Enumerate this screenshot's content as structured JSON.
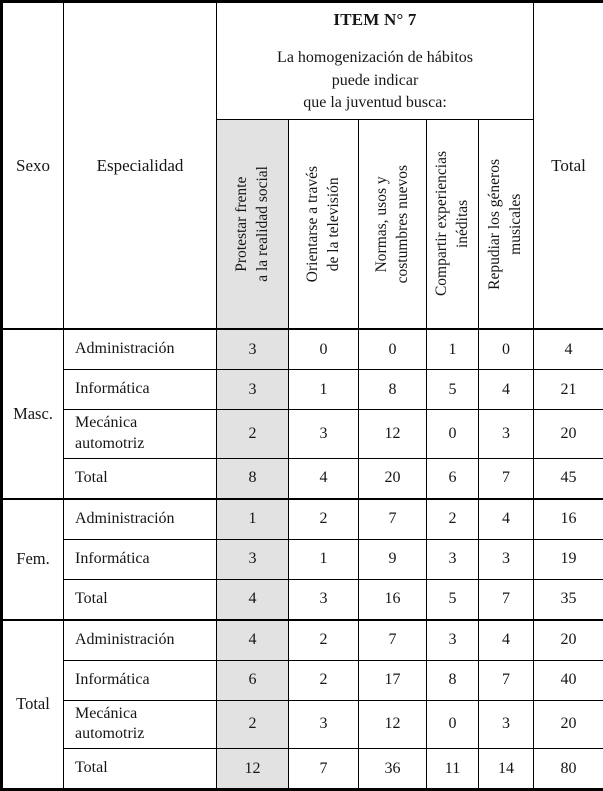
{
  "colors": {
    "highlight_column": "#e2e2e2",
    "border": "#000000",
    "text": "#161616"
  },
  "header": {
    "sexo": "Sexo",
    "especialidad": "Especialidad",
    "item_title": "ITEM N° 7",
    "item_subtitle": "La homogenización de hábitos\npuede indicar\nque la juventud busca:",
    "options": [
      "Protestar frente\na la realidad social",
      "Orientarse a través\nde la televisión",
      "Normas, usos y\ncostumbres nuevos",
      "Compartir experiencias\ninéditas",
      "Repudiar los géneros\nmusicales"
    ],
    "total": "Total"
  },
  "groups": [
    {
      "sexo": "Masc.",
      "rows": [
        {
          "especialidad": "Administración",
          "values": [
            3,
            0,
            0,
            1,
            0
          ],
          "total": 4
        },
        {
          "especialidad": "Informática",
          "values": [
            3,
            1,
            8,
            5,
            4
          ],
          "total": 21
        },
        {
          "especialidad": "Mecánica\nautomotriz",
          "values": [
            2,
            3,
            12,
            0,
            3
          ],
          "total": 20
        },
        {
          "especialidad": "Total",
          "values": [
            8,
            4,
            20,
            6,
            7
          ],
          "total": 45
        }
      ]
    },
    {
      "sexo": "Fem.",
      "rows": [
        {
          "especialidad": "Administración",
          "values": [
            1,
            2,
            7,
            2,
            4
          ],
          "total": 16
        },
        {
          "especialidad": "Informática",
          "values": [
            3,
            1,
            9,
            3,
            3
          ],
          "total": 19
        },
        {
          "especialidad": "Total",
          "values": [
            4,
            3,
            16,
            5,
            7
          ],
          "total": 35
        }
      ]
    },
    {
      "sexo": "Total",
      "rows": [
        {
          "especialidad": "Administración",
          "values": [
            4,
            2,
            7,
            3,
            4
          ],
          "total": 20
        },
        {
          "especialidad": "Informática",
          "values": [
            6,
            2,
            17,
            8,
            7
          ],
          "total": 40
        },
        {
          "especialidad": "Mecánica\nautomotriz",
          "values": [
            2,
            3,
            12,
            0,
            3
          ],
          "total": 20
        },
        {
          "especialidad": "Total",
          "values": [
            12,
            7,
            36,
            11,
            14
          ],
          "total": 80
        }
      ]
    }
  ],
  "chart_data": {
    "type": "table",
    "title": "ITEM N° 7 — La homogenización de hábitos puede indicar que la juventud busca:",
    "columns": [
      "Sexo",
      "Especialidad",
      "Protestar frente a la realidad social",
      "Orientarse a través de la televisión",
      "Normas, usos y costumbres nuevos",
      "Compartir experiencias inéditas",
      "Repudiar los géneros musicales",
      "Total"
    ],
    "rows": [
      [
        "Masc.",
        "Administración",
        3,
        0,
        0,
        1,
        0,
        4
      ],
      [
        "Masc.",
        "Informática",
        3,
        1,
        8,
        5,
        4,
        21
      ],
      [
        "Masc.",
        "Mecánica automotriz",
        2,
        3,
        12,
        0,
        3,
        20
      ],
      [
        "Masc.",
        "Total",
        8,
        4,
        20,
        6,
        7,
        45
      ],
      [
        "Fem.",
        "Administración",
        1,
        2,
        7,
        2,
        4,
        16
      ],
      [
        "Fem.",
        "Informática",
        3,
        1,
        9,
        3,
        3,
        19
      ],
      [
        "Fem.",
        "Total",
        4,
        3,
        16,
        5,
        7,
        35
      ],
      [
        "Total",
        "Administración",
        4,
        2,
        7,
        3,
        4,
        20
      ],
      [
        "Total",
        "Informática",
        6,
        2,
        17,
        8,
        7,
        40
      ],
      [
        "Total",
        "Mecánica automotriz",
        2,
        3,
        12,
        0,
        3,
        20
      ],
      [
        "Total",
        "Total",
        12,
        7,
        36,
        11,
        14,
        80
      ]
    ]
  }
}
